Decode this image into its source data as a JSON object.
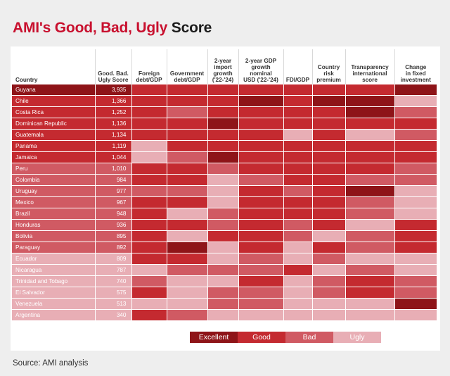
{
  "title_part1": "AMI's Good, Bad, Ugly",
  "title_part2": "Score",
  "source": "Source: AMI analysis",
  "colors": {
    "E": "#8e1418",
    "G": "#c42a30",
    "B": "#d05a63",
    "U": "#e8aeb5"
  },
  "legend": [
    {
      "key": "E",
      "label": "Excellent"
    },
    {
      "key": "G",
      "label": "Good"
    },
    {
      "key": "B",
      "label": "Bad"
    },
    {
      "key": "U",
      "label": "Ugly"
    }
  ],
  "chart_data": {
    "type": "table",
    "title": "AMI's Good, Bad, Ugly Score",
    "columns": [
      "Country",
      "Good. Bad. Ugly Score",
      "Foreign debt/GDP",
      "Government debt/GDP",
      "2-year import growth ('22-'24)",
      "2-year GDP growth nominal USD ('22-'24)",
      "FDI/GDP",
      "Country risk premium",
      "Transparency international score",
      "Change in fixed investment"
    ],
    "header_lines": [
      [
        "Country"
      ],
      [
        "Good. Bad.",
        "Ugly Score"
      ],
      [
        "Foreign",
        "debt/GDP"
      ],
      [
        "Government",
        "debt/GDP"
      ],
      [
        "2-year",
        "import",
        "growth",
        "('22-'24)"
      ],
      [
        "2-year GDP",
        "growth",
        "nominal",
        "USD ('22-'24)"
      ],
      [
        "FDI/GDP"
      ],
      [
        "Country",
        "risk",
        "premium"
      ],
      [
        "Transparency",
        "international",
        "score"
      ],
      [
        "Change",
        "in fixed",
        "investment"
      ]
    ],
    "rows": [
      {
        "country": "Guyana",
        "score": "3,935",
        "tier": "E",
        "ratings": [
          "G",
          "G",
          "G",
          "G",
          "G",
          "G",
          "G",
          "E"
        ]
      },
      {
        "country": "Chile",
        "score": "1,366",
        "tier": "G",
        "ratings": [
          "G",
          "G",
          "G",
          "E",
          "G",
          "E",
          "E",
          "U"
        ]
      },
      {
        "country": "Costa Rica",
        "score": "1,252",
        "tier": "G",
        "ratings": [
          "G",
          "B",
          "G",
          "G",
          "G",
          "G",
          "E",
          "B"
        ]
      },
      {
        "country": "Dominican Republic",
        "score": "1,136",
        "tier": "G",
        "ratings": [
          "G",
          "G",
          "E",
          "G",
          "G",
          "G",
          "G",
          "G"
        ]
      },
      {
        "country": "Guatemala",
        "score": "1,134",
        "tier": "G",
        "ratings": [
          "G",
          "G",
          "G",
          "G",
          "U",
          "G",
          "U",
          "B"
        ]
      },
      {
        "country": "Panama",
        "score": "1,119",
        "tier": "G",
        "ratings": [
          "U",
          "G",
          "G",
          "G",
          "G",
          "G",
          "G",
          "G"
        ]
      },
      {
        "country": "Jamaica",
        "score": "1,044",
        "tier": "G",
        "ratings": [
          "U",
          "B",
          "E",
          "G",
          "G",
          "G",
          "G",
          "G"
        ]
      },
      {
        "country": "Peru",
        "score": "1,010",
        "tier": "B",
        "ratings": [
          "G",
          "G",
          "B",
          "G",
          "G",
          "G",
          "G",
          "B"
        ]
      },
      {
        "country": "Colombia",
        "score": "984",
        "tier": "B",
        "ratings": [
          "G",
          "G",
          "U",
          "B",
          "G",
          "G",
          "B",
          "B"
        ]
      },
      {
        "country": "Uruguay",
        "score": "977",
        "tier": "B",
        "ratings": [
          "B",
          "B",
          "U",
          "G",
          "B",
          "G",
          "E",
          "U"
        ]
      },
      {
        "country": "Mexico",
        "score": "967",
        "tier": "B",
        "ratings": [
          "G",
          "G",
          "U",
          "G",
          "G",
          "G",
          "B",
          "U"
        ]
      },
      {
        "country": "Brazil",
        "score": "948",
        "tier": "B",
        "ratings": [
          "G",
          "U",
          "B",
          "G",
          "G",
          "G",
          "B",
          "U"
        ]
      },
      {
        "country": "Honduras",
        "score": "936",
        "tier": "B",
        "ratings": [
          "G",
          "G",
          "B",
          "G",
          "B",
          "G",
          "U",
          "G"
        ]
      },
      {
        "country": "Bolivia",
        "score": "895",
        "tier": "B",
        "ratings": [
          "G",
          "U",
          "G",
          "G",
          "B",
          "U",
          "B",
          "G"
        ]
      },
      {
        "country": "Paraguay",
        "score": "892",
        "tier": "B",
        "ratings": [
          "G",
          "E",
          "U",
          "G",
          "U",
          "G",
          "B",
          "G"
        ]
      },
      {
        "country": "Ecuador",
        "score": "809",
        "tier": "U",
        "ratings": [
          "G",
          "G",
          "U",
          "B",
          "U",
          "B",
          "U",
          "U"
        ]
      },
      {
        "country": "Nicaragua",
        "score": "787",
        "tier": "U",
        "ratings": [
          "U",
          "B",
          "B",
          "B",
          "G",
          "U",
          "B",
          "U"
        ]
      },
      {
        "country": "Trinidad and Tobago",
        "score": "740",
        "tier": "U",
        "ratings": [
          "B",
          "U",
          "U",
          "G",
          "U",
          "B",
          "G",
          "B"
        ]
      },
      {
        "country": "El Salvador",
        "score": "575",
        "tier": "U",
        "ratings": [
          "G",
          "U",
          "B",
          "B",
          "U",
          "B",
          "G",
          "B"
        ]
      },
      {
        "country": "Venezuela",
        "score": "513",
        "tier": "U",
        "ratings": [
          "U",
          "U",
          "B",
          "B",
          "U",
          "U",
          "U",
          "E"
        ]
      },
      {
        "country": "Argentina",
        "score": "340",
        "tier": "U",
        "ratings": [
          "G",
          "B",
          "U",
          "U",
          "U",
          "U",
          "U",
          "U"
        ]
      }
    ]
  }
}
